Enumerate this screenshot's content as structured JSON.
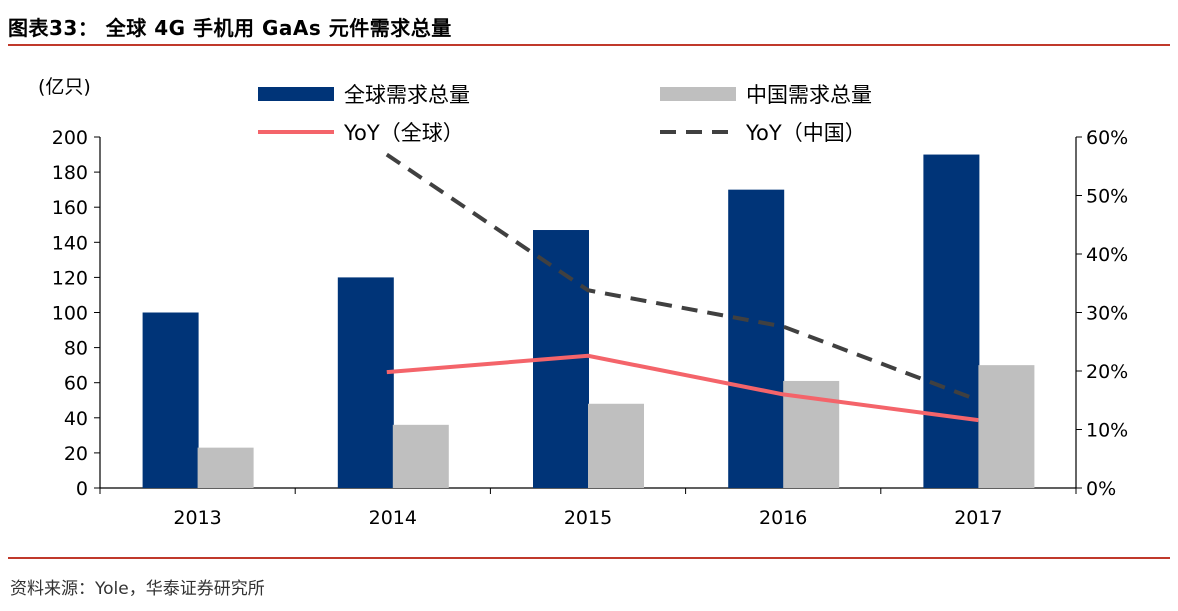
{
  "title": "图表33：  全球 4G 手机用 GaAs 元件需求总量",
  "source": "资料来源：Yole，华泰证券研究所",
  "chart_data": {
    "type": "bar",
    "categories": [
      "2013",
      "2014",
      "2015",
      "2016",
      "2017"
    ],
    "y_left": {
      "unit": "(亿只)",
      "ylim": [
        0,
        200
      ],
      "ticks": [
        0,
        20,
        40,
        60,
        80,
        100,
        120,
        140,
        160,
        180,
        200
      ]
    },
    "y_right": {
      "ylim": [
        0,
        60
      ],
      "ticks": [
        "0%",
        "10%",
        "20%",
        "30%",
        "40%",
        "50%",
        "60%"
      ]
    },
    "series": [
      {
        "name": "全球需求总量",
        "type": "bar",
        "axis": "left",
        "color": "#003478",
        "values": [
          100,
          120,
          147,
          170,
          190
        ]
      },
      {
        "name": "中国需求总量",
        "type": "bar",
        "axis": "left",
        "color": "#bfbfbf",
        "values": [
          23,
          36,
          48,
          61,
          70
        ]
      },
      {
        "name": "YoY（全球）",
        "type": "line",
        "axis": "right",
        "color": "#f4646a",
        "style": "solid",
        "values": [
          null,
          19.8,
          22.6,
          16.0,
          11.6
        ]
      },
      {
        "name": "YoY（中国）",
        "type": "line",
        "axis": "right",
        "color": "#404040",
        "style": "dashed",
        "values": [
          null,
          57.0,
          33.8,
          27.6,
          15.0
        ]
      }
    ],
    "legend": "top",
    "grid": false
  }
}
